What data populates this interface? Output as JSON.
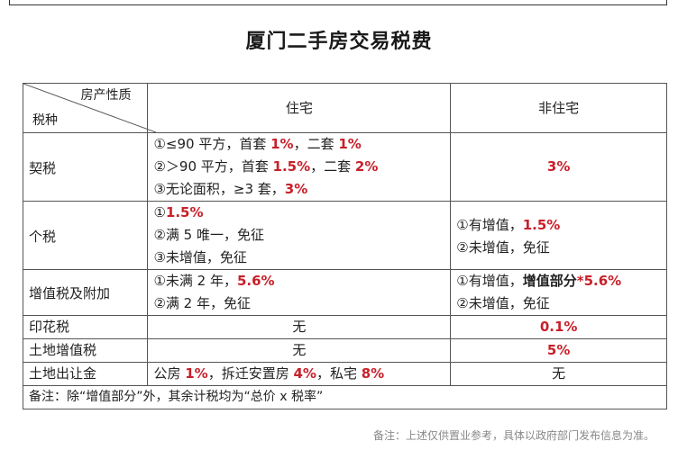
{
  "title": "厦门二手房交易税费",
  "header": {
    "corner_top": "房产性质",
    "corner_bottom": "税种",
    "residential": "住宅",
    "non_residential": "非住宅"
  },
  "rows": {
    "deed": {
      "name": "契税",
      "res": [
        [
          "①≤90 平方，首套 ",
          "1%",
          "，二套 ",
          "1%"
        ],
        [
          "②＞90 平方，首套 ",
          "1.5%",
          "，二套 ",
          "2%"
        ],
        [
          "③无论面积，≥3 套，",
          "3%"
        ]
      ],
      "nonres": "3%"
    },
    "income": {
      "name": "个税",
      "res": [
        [
          "①",
          "1.5%"
        ],
        [
          "②满 5 唯一，免征"
        ],
        [
          "③未增值，免征"
        ]
      ],
      "nonres": [
        [
          "①有增值，",
          "1.5%"
        ],
        [
          "②未增值，免征"
        ]
      ]
    },
    "vat": {
      "name": "增值税及附加",
      "res": [
        [
          "①未满 2 年，",
          "5.6%"
        ],
        [
          "②满 2 年，免征"
        ]
      ],
      "nonres": [
        [
          "①有增值，",
          "增值部分",
          "*5.6%"
        ],
        [
          "②未增值，免征"
        ]
      ]
    },
    "stamp": {
      "name": "印花税",
      "res": "无",
      "nonres": "0.1%"
    },
    "land_vat": {
      "name": "土地增值税",
      "res": "无",
      "nonres": "5%"
    },
    "land_transfer": {
      "name": "土地出让金",
      "res": [
        "公房 ",
        "1%",
        "，拆迁安置房 ",
        "4%",
        "，私宅 ",
        "8%"
      ],
      "nonres": "无"
    }
  },
  "note": "备注：除“增值部分”外，其余计税均为“总价 x 税率”",
  "footer": "备注：上述仅供置业参考，具体以政府部门发布信息为准。",
  "colors": {
    "accent_red": "#c8202a",
    "text": "#222222",
    "border": "#555555"
  }
}
